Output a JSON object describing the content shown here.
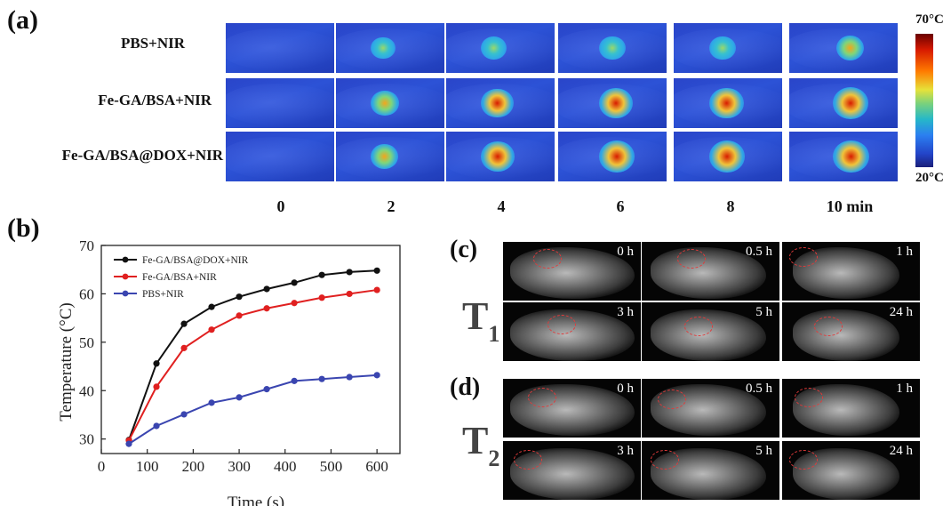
{
  "panel_a": {
    "letter": "(a)",
    "rows": [
      "PBS+NIR",
      "Fe-GA/BSA+NIR",
      "Fe-GA/BSA@DOX+NIR"
    ],
    "times": [
      "0",
      "2",
      "4",
      "6",
      "8",
      "10 min"
    ],
    "colorbar": {
      "max_label": "70°C",
      "min_label": "20°C"
    },
    "hotspot_intensity": [
      [
        0.0,
        0.35,
        0.4,
        0.45,
        0.45,
        0.5
      ],
      [
        0.0,
        0.55,
        0.75,
        0.8,
        0.85,
        0.9
      ],
      [
        0.0,
        0.5,
        0.8,
        0.9,
        0.9,
        0.95
      ]
    ]
  },
  "panel_b": {
    "letter": "(b)"
  },
  "chart_data": {
    "type": "line",
    "xlabel": "Time (s)",
    "ylabel": "Temperature (°C)",
    "xlim": [
      0,
      650
    ],
    "ylim": [
      27,
      70
    ],
    "xticks": [
      "0",
      "100",
      "200",
      "300",
      "400",
      "500",
      "600"
    ],
    "yticks": [
      "30",
      "40",
      "50",
      "60",
      "70"
    ],
    "x": [
      60,
      120,
      180,
      240,
      300,
      360,
      420,
      480,
      540,
      600
    ],
    "series": [
      {
        "name": "Fe-GA/BSA@DOX+NIR",
        "color": "#111111",
        "values": [
          29.8,
          45.6,
          53.8,
          57.3,
          59.4,
          61.0,
          62.3,
          63.9,
          64.5,
          64.8
        ]
      },
      {
        "name": "Fe-GA/BSA+NIR",
        "color": "#e02020",
        "values": [
          29.7,
          40.8,
          48.8,
          52.6,
          55.5,
          57.0,
          58.1,
          59.2,
          60.0,
          60.8
        ]
      },
      {
        "name": "PBS+NIR",
        "color": "#3a45b0",
        "values": [
          29.0,
          32.7,
          35.1,
          37.5,
          38.6,
          40.3,
          42.0,
          42.4,
          42.8,
          43.2
        ]
      }
    ],
    "legend_position": "top-left",
    "grid": false
  },
  "panel_c": {
    "letter": "(c)",
    "sequence": "T",
    "subscript": "1",
    "times": [
      "0 h",
      "0.5 h",
      "1 h",
      "3 h",
      "5 h",
      "24 h"
    ]
  },
  "panel_d": {
    "letter": "(d)",
    "sequence": "T",
    "subscript": "2",
    "times": [
      "0 h",
      "0.5 h",
      "1 h",
      "3 h",
      "5 h",
      "24 h"
    ]
  }
}
